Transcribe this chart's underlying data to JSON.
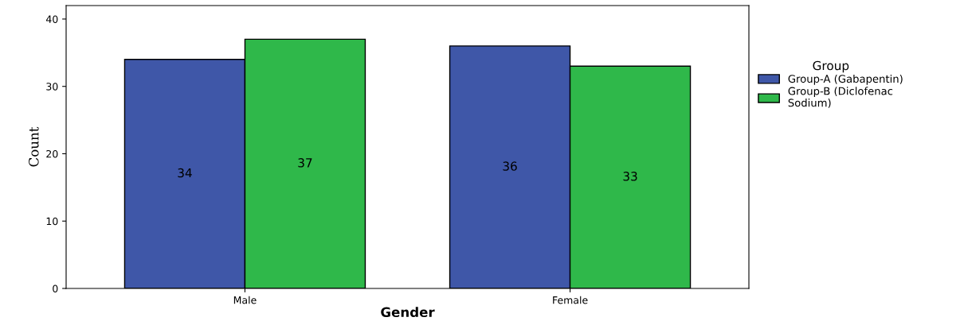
{
  "chart_data": {
    "type": "bar",
    "xlabel": "Gender",
    "ylabel": "Count",
    "legend_title": "Group",
    "categories": [
      "Male",
      "Female"
    ],
    "series": [
      {
        "name": "Group-A (Gabapentin)",
        "color": "#3f57a8",
        "values": [
          34,
          36
        ]
      },
      {
        "name": "Group-B (Diclofenac\nSodium)",
        "color": "#2fb84a",
        "values": [
          37,
          33
        ]
      }
    ],
    "ylim": [
      0,
      42
    ],
    "yticks": [
      0,
      10,
      20,
      30,
      40
    ],
    "grid": false,
    "legend": "right",
    "data_labels": true
  }
}
